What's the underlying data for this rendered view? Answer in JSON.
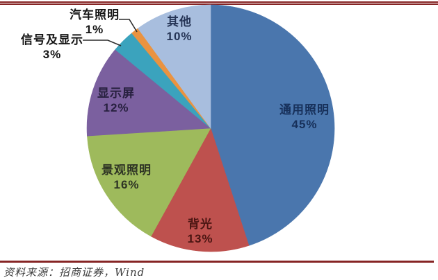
{
  "chart_data": {
    "type": "pie",
    "title": "",
    "start_angle_deg": 0,
    "direction": "clockwise",
    "total": 100,
    "label_style": "category name + percent shown on/near each slice",
    "legend_position": "none",
    "slices": [
      {
        "label": "通用照明",
        "value": 45,
        "pct_label": "45%",
        "color": "#4A76AD",
        "text_color": "#17305a",
        "label_position": "inside"
      },
      {
        "label": "背光",
        "value": 13,
        "pct_label": "13%",
        "color": "#BE514E",
        "text_color": "#4a1512",
        "label_position": "inside"
      },
      {
        "label": "景观照明",
        "value": 16,
        "pct_label": "16%",
        "color": "#9EBA5C",
        "text_color": "#2e3424",
        "label_position": "inside"
      },
      {
        "label": "显示屏",
        "value": 12,
        "pct_label": "12%",
        "color": "#7B609F",
        "text_color": "#27203f",
        "label_position": "inside"
      },
      {
        "label": "信号及显示",
        "value": 3,
        "pct_label": "3%",
        "color": "#3BA3BD",
        "text_color": "#151515",
        "label_position": "outside"
      },
      {
        "label": "汽车照明",
        "value": 1,
        "pct_label": "1%",
        "color": "#EA9340",
        "text_color": "#151515",
        "label_position": "outside"
      },
      {
        "label": "其他",
        "value": 10,
        "pct_label": "10%",
        "color": "#A8BEDE",
        "text_color": "#253455",
        "label_position": "inside"
      }
    ]
  },
  "source_note": "资料来源：招商证券，Wind",
  "colors": {
    "accent_rule": "#862424",
    "leader_line": "#2b2b2b",
    "background": "#ffffff"
  }
}
